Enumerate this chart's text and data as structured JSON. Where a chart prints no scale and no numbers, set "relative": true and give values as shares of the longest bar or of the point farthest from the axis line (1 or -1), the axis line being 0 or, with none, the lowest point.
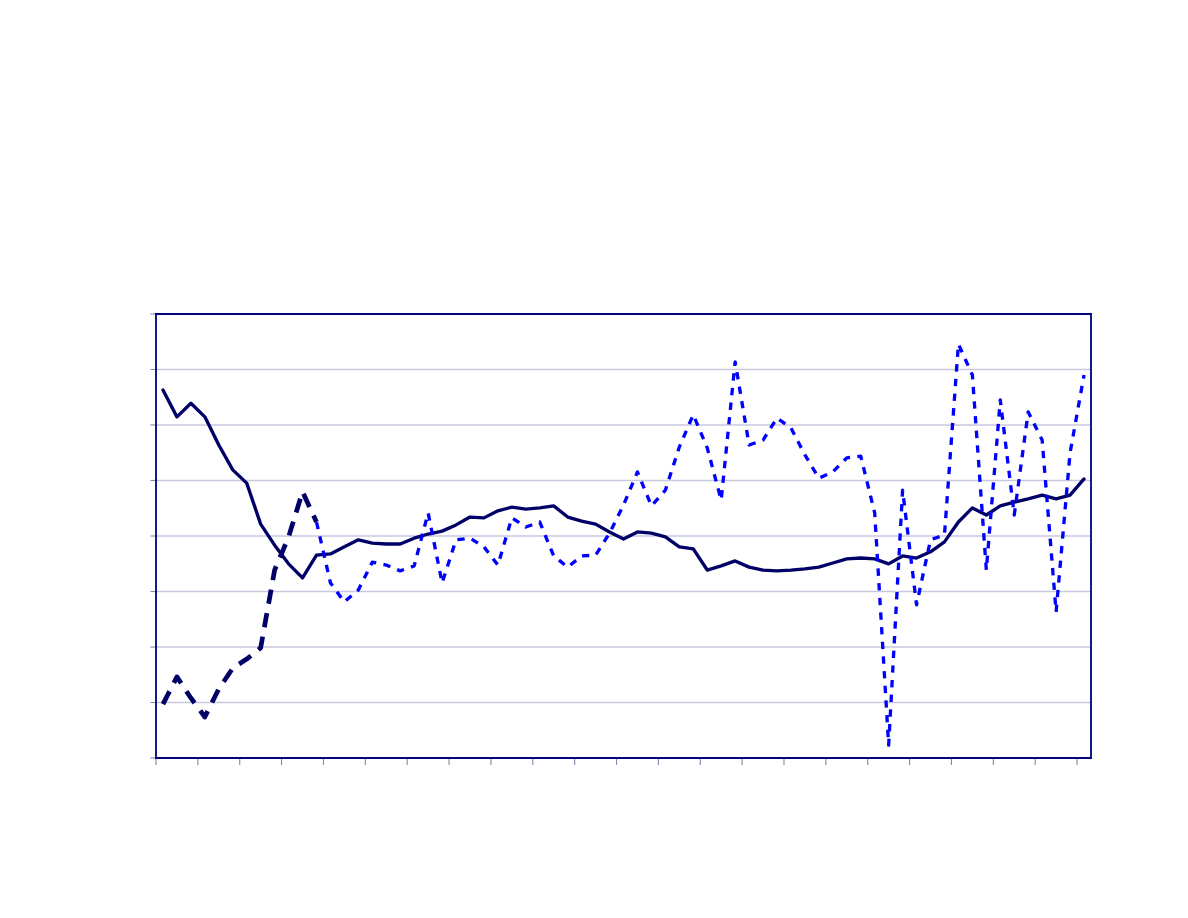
{
  "chart_data": {
    "type": "line",
    "relative": true,
    "grid": "y",
    "categories": [
      null,
      null,
      null,
      null,
      null,
      null,
      null,
      null,
      null,
      null,
      null,
      null,
      null,
      null,
      null,
      null,
      null,
      null,
      null,
      null,
      null,
      null,
      null,
      null,
      null,
      null,
      null,
      null,
      null,
      null,
      null,
      null,
      null,
      null,
      null,
      null,
      null,
      null,
      null,
      null,
      null,
      null,
      null,
      null,
      null,
      null,
      null,
      null,
      null,
      null,
      null,
      null,
      null,
      null,
      null,
      null,
      null,
      null,
      null,
      null,
      null,
      null,
      null,
      null,
      null,
      null,
      null
    ],
    "series": [
      {
        "color": "#000066",
        "line_style": "solid",
        "values": [
          0.889,
          0.824,
          0.857,
          0.824,
          0.756,
          0.696,
          0.664,
          0.565,
          0.514,
          0.469,
          0.435,
          0.49,
          0.493,
          0.51,
          0.527,
          0.519,
          0.517,
          0.517,
          0.531,
          0.541,
          0.548,
          0.563,
          0.582,
          0.58,
          0.597,
          0.606,
          0.601,
          0.604,
          0.609,
          0.582,
          0.572,
          0.565,
          0.546,
          0.529,
          0.546,
          0.543,
          0.534,
          0.51,
          0.505,
          0.454,
          0.464,
          0.476,
          0.461,
          0.454,
          0.452,
          0.454,
          0.457,
          0.461,
          0.471,
          0.481,
          0.483,
          0.481,
          0.469,
          0.488,
          0.483,
          0.498,
          0.522,
          0.57,
          0.604,
          0.587,
          0.609,
          0.618,
          0.626,
          0.635,
          0.626,
          0.635,
          0.674
        ]
      },
      {
        "color": "#000066",
        "line_style": "dashed",
        "values": [
          0.13,
          0.196,
          0.145,
          0.099,
          0.167,
          0.217,
          0.239,
          0.266,
          0.454,
          0.534,
          0.643,
          0.57,
          null,
          null,
          null,
          null,
          null,
          null,
          null,
          null,
          null,
          null,
          null,
          null,
          null,
          null,
          null,
          null,
          null,
          null,
          null,
          null,
          null,
          null,
          null,
          null,
          null,
          null,
          null,
          null,
          null,
          null,
          null,
          null,
          null,
          null,
          null,
          null,
          null,
          null,
          null,
          null,
          null,
          null,
          null,
          null,
          null,
          null,
          null,
          null,
          null,
          null,
          null,
          null,
          null,
          null,
          null
        ]
      },
      {
        "color": "#0000ff",
        "line_style": "dotted",
        "values": [
          null,
          null,
          null,
          null,
          null,
          null,
          null,
          null,
          null,
          null,
          null,
          0.57,
          0.423,
          0.377,
          0.406,
          0.473,
          0.466,
          0.452,
          0.464,
          0.592,
          0.423,
          0.527,
          0.531,
          0.51,
          0.466,
          0.58,
          0.558,
          0.57,
          0.488,
          0.461,
          0.488,
          0.49,
          0.543,
          0.611,
          0.691,
          0.609,
          0.647,
          0.751,
          0.829,
          0.749,
          0.623,
          0.957,
          0.756,
          0.768,
          0.821,
          0.797,
          0.732,
          0.676,
          0.691,
          0.725,
          0.729,
          0.592,
          0.031,
          0.647,
          0.37,
          0.527,
          0.539,
          1.0,
          0.925,
          0.454,
          0.865,
          0.587,
          0.836,
          0.768,
          0.353,
          0.737,
          0.925
        ]
      }
    ]
  }
}
